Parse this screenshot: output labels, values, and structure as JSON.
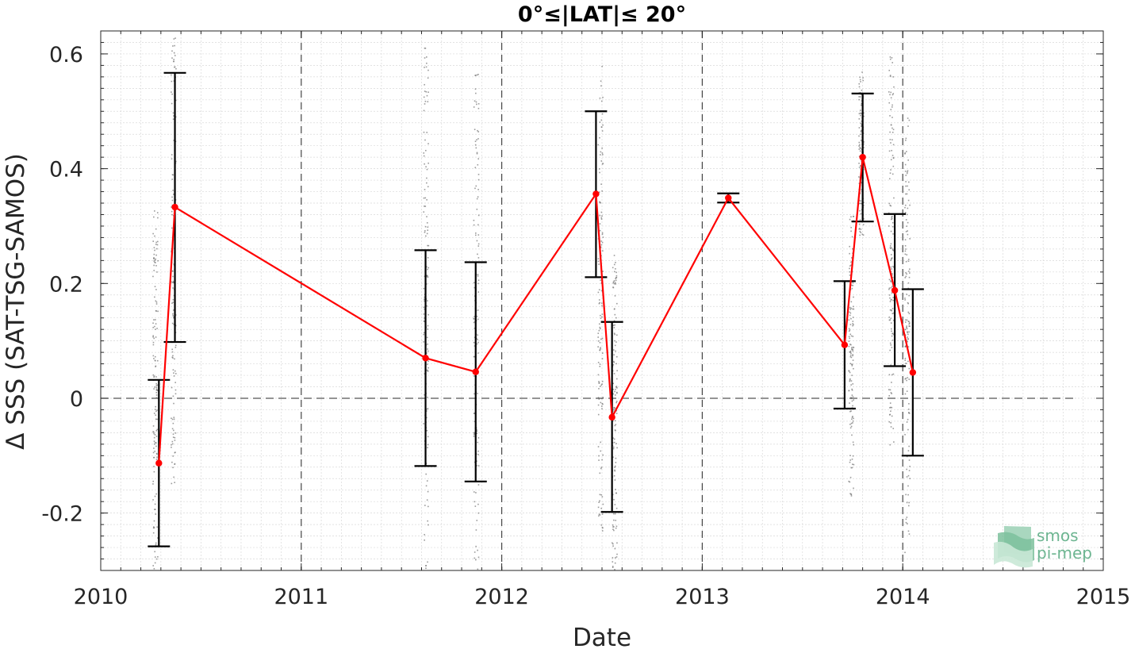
{
  "chart_data": {
    "type": "line",
    "title": "0°≤|LAT|≤ 20°",
    "xlabel": "Date",
    "ylabel": "Δ SSS (SAT-TSG-SAMOS)",
    "xlim": [
      2010,
      2015
    ],
    "ylim": [
      -0.3,
      0.64
    ],
    "x_ticks": [
      2010,
      2011,
      2012,
      2013,
      2014,
      2015
    ],
    "x_tick_labels": [
      "2010",
      "2011",
      "2012",
      "2013",
      "2014",
      "2015"
    ],
    "y_ticks": [
      -0.2,
      0,
      0.2,
      0.4,
      0.6
    ],
    "y_tick_labels": [
      "-0.2",
      "0",
      "0.2",
      "0.4",
      "0.6"
    ],
    "grid": true,
    "reference_line_y": 0,
    "colors": {
      "line": "#ff0000",
      "errorbar": "#000000",
      "scatter": "#7a7a7a",
      "grid": "#d9d9d9"
    },
    "series": [
      {
        "color": "#ff0000",
        "points": [
          {
            "x": 2010.29,
            "y": -0.113,
            "lo": -0.258,
            "hi": 0.032
          },
          {
            "x": 2010.37,
            "y": 0.333,
            "lo": 0.098,
            "hi": 0.567
          },
          {
            "x": 2011.62,
            "y": 0.07,
            "lo": -0.118,
            "hi": 0.258
          },
          {
            "x": 2011.87,
            "y": 0.046,
            "lo": -0.145,
            "hi": 0.237
          },
          {
            "x": 2012.47,
            "y": 0.356,
            "lo": 0.211,
            "hi": 0.5
          },
          {
            "x": 2012.55,
            "y": -0.033,
            "lo": -0.198,
            "hi": 0.133
          },
          {
            "x": 2013.13,
            "y": 0.349,
            "lo": 0.341,
            "hi": 0.357
          },
          {
            "x": 2013.71,
            "y": 0.093,
            "lo": -0.018,
            "hi": 0.204
          },
          {
            "x": 2013.8,
            "y": 0.42,
            "lo": 0.308,
            "hi": 0.531
          },
          {
            "x": 2013.96,
            "y": 0.188,
            "lo": 0.056,
            "hi": 0.321
          },
          {
            "x": 2014.05,
            "y": 0.045,
            "lo": -0.1,
            "hi": 0.19
          }
        ]
      }
    ],
    "scatter_clusters": [
      {
        "x": 2010.27,
        "y_min": -0.3,
        "y_max": 0.33
      },
      {
        "x": 2010.36,
        "y_min": -0.15,
        "y_max": 0.64
      },
      {
        "x": 2011.62,
        "y_min": -0.3,
        "y_max": 0.63
      },
      {
        "x": 2011.87,
        "y_min": -0.3,
        "y_max": 0.58
      },
      {
        "x": 2012.49,
        "y_min": -0.25,
        "y_max": 0.58
      },
      {
        "x": 2012.56,
        "y_min": -0.3,
        "y_max": 0.25
      },
      {
        "x": 2013.74,
        "y_min": -0.17,
        "y_max": 0.33
      },
      {
        "x": 2013.79,
        "y_min": 0.28,
        "y_max": 0.58
      },
      {
        "x": 2013.94,
        "y_min": -0.08,
        "y_max": 0.6
      },
      {
        "x": 2014.02,
        "y_min": -0.28,
        "y_max": 0.49
      }
    ]
  },
  "logo": {
    "line1": "smos",
    "line2": "pi-mep"
  }
}
